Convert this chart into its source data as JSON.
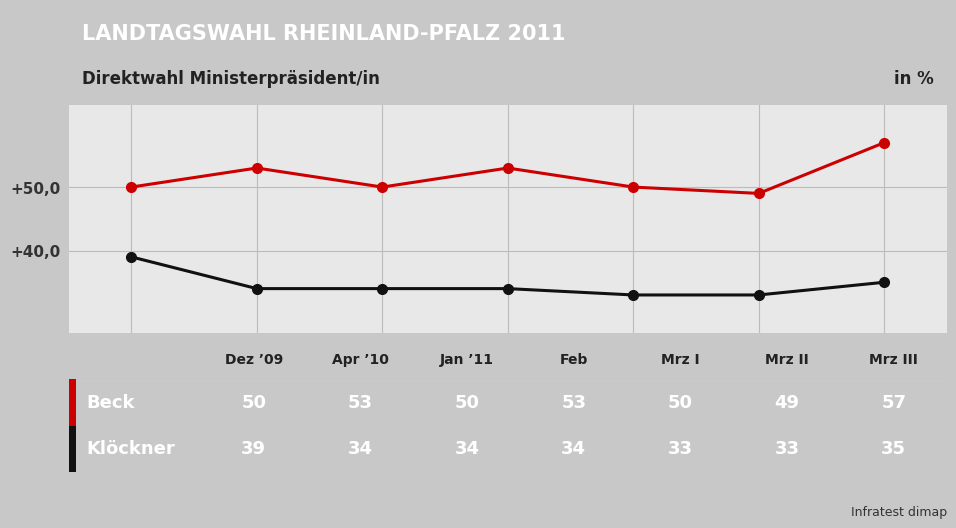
{
  "title": "LANDTAGSWAHL RHEINLAND-PFALZ 2011",
  "subtitle": "Direktwahl Ministerpräsident/in",
  "unit": "in %",
  "source": "Infratest dimap",
  "categories": [
    "Dez ’09",
    "Apr ’10",
    "Jan ’11",
    "Feb",
    "Mrz I",
    "Mrz II",
    "Mrz III"
  ],
  "beck_values": [
    50,
    53,
    50,
    53,
    50,
    49,
    57
  ],
  "kloeckner_values": [
    39,
    34,
    34,
    34,
    33,
    33,
    35
  ],
  "beck_color": "#cc0000",
  "kloeckner_color": "#111111",
  "yticks": [
    40,
    50
  ],
  "ytick_labels": [
    "+40,0",
    "+50,0"
  ],
  "ylim": [
    27,
    63
  ],
  "title_bg": "#1a3570",
  "subtitle_bg": "#ffffff",
  "table_header_bg": "#ffffff",
  "table_row1_bg": "#4472a0",
  "table_row2_bg": "#3a6090",
  "bg_color": "#c8c8c8",
  "chart_bg": "#e8e8e8",
  "chart_bg_right": "#f5f5f5",
  "grid_color": "#bbbbbb",
  "marker_size": 7,
  "line_width": 2.2
}
